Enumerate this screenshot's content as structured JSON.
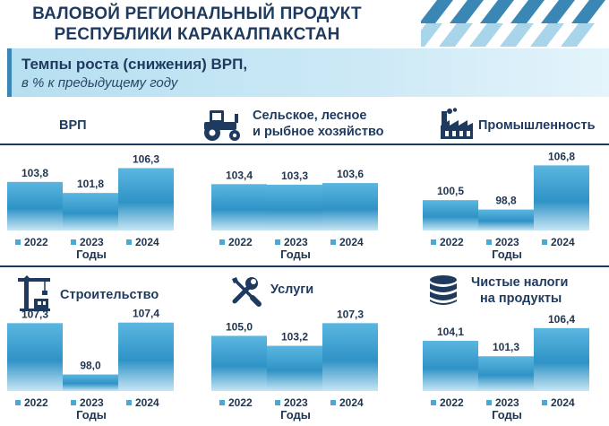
{
  "header": {
    "title_line1": "ВАЛОВОЙ РЕГИОНАЛЬНЫЙ ПРОДУКТ",
    "title_line2": "РЕСПУБЛИКИ КАРАКАЛПАКСТАН",
    "subtitle": "Темпы роста (снижения) ВРП,",
    "subtitle_unit": "в % к предыдущему году"
  },
  "colors": {
    "bar_fill": "#2f93c6",
    "bar_top": "#5bb6e0",
    "bar_bottom": "#c7e6f4",
    "legend_marker": "#4aa8d6",
    "text": "#1f3550"
  },
  "icons": {
    "agri": "tractor-icon",
    "industry": "factory-icon",
    "construction": "crane-icon",
    "services": "tools-icon",
    "taxes": "coin-stack-icon"
  },
  "chart_data": [
    {
      "type": "bar",
      "title": "ВРП",
      "categories": [
        "2022",
        "2023",
        "2024"
      ],
      "values": [
        103.8,
        101.8,
        106.3
      ],
      "labels": [
        "103,8",
        "101,8",
        "106,3"
      ],
      "xlabel": "Годы"
    },
    {
      "type": "bar",
      "title": "Сельское, лесное и рыбное хозяйство",
      "title_line1": "Сельское, лесное",
      "title_line2": "и рыбное хозяйство",
      "categories": [
        "2022",
        "2023",
        "2024"
      ],
      "values": [
        103.4,
        103.3,
        103.6
      ],
      "labels": [
        "103,4",
        "103,3",
        "103,6"
      ],
      "xlabel": "Годы"
    },
    {
      "type": "bar",
      "title": "Промышленность",
      "categories": [
        "2022",
        "2023",
        "2024"
      ],
      "values": [
        100.5,
        98.8,
        106.8
      ],
      "labels": [
        "100,5",
        "98,8",
        "106,8"
      ],
      "xlabel": "Годы"
    },
    {
      "type": "bar",
      "title": "Строительство",
      "categories": [
        "2022",
        "2023",
        "2024"
      ],
      "values": [
        107.3,
        98.0,
        107.4
      ],
      "labels": [
        "107,3",
        "98,0",
        "107,4"
      ],
      "xlabel": "Годы"
    },
    {
      "type": "bar",
      "title": "Услуги",
      "categories": [
        "2022",
        "2023",
        "2024"
      ],
      "values": [
        105.0,
        103.2,
        107.3
      ],
      "labels": [
        "105,0",
        "103,2",
        "107,3"
      ],
      "xlabel": "Годы"
    },
    {
      "type": "bar",
      "title": "Чистые налоги на продукты",
      "title_line1": "Чистые налоги",
      "title_line2": "на продукты",
      "categories": [
        "2022",
        "2023",
        "2024"
      ],
      "values": [
        104.1,
        101.3,
        106.4
      ],
      "labels": [
        "104,1",
        "101,3",
        "106,4"
      ],
      "xlabel": "Годы"
    }
  ]
}
